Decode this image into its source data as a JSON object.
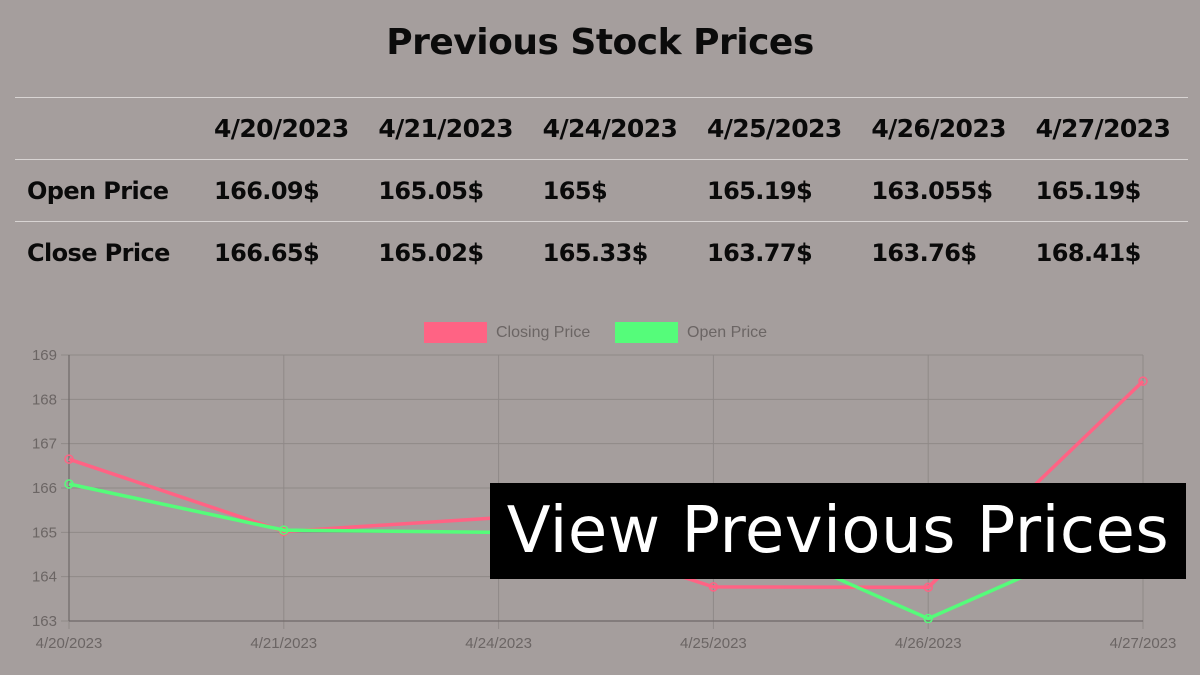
{
  "title": "Previous Stock Prices",
  "table": {
    "corner": "",
    "dates": [
      "4/20/2023",
      "4/21/2023",
      "4/24/2023",
      "4/25/2023",
      "4/26/2023",
      "4/27/2023"
    ],
    "rows": [
      {
        "label": "Open Price",
        "values": [
          "166.09$",
          "165.05$",
          "165$",
          "165.19$",
          "163.055$",
          "165.19$"
        ]
      },
      {
        "label": "Close Price",
        "values": [
          "166.65$",
          "165.02$",
          "165.33$",
          "163.77$",
          "163.76$",
          "168.41$"
        ]
      }
    ]
  },
  "chart_data": {
    "type": "line",
    "categories": [
      "4/20/2023",
      "4/21/2023",
      "4/24/2023",
      "4/25/2023",
      "4/26/2023",
      "4/27/2023"
    ],
    "series": [
      {
        "name": "Closing Price",
        "color": "#ff6384",
        "values": [
          166.65,
          165.02,
          165.33,
          163.77,
          163.76,
          168.41
        ]
      },
      {
        "name": "Open Price",
        "color": "#55fc7a",
        "values": [
          166.09,
          165.05,
          165,
          165.19,
          163.055,
          165.19
        ]
      }
    ],
    "ylim": [
      163,
      169
    ],
    "yticks": [
      163,
      164,
      165,
      166,
      167,
      168,
      169
    ],
    "grid": true,
    "legend": "top-center",
    "xlabel": "",
    "ylabel": ""
  },
  "cta": {
    "label": "View Previous Prices"
  }
}
